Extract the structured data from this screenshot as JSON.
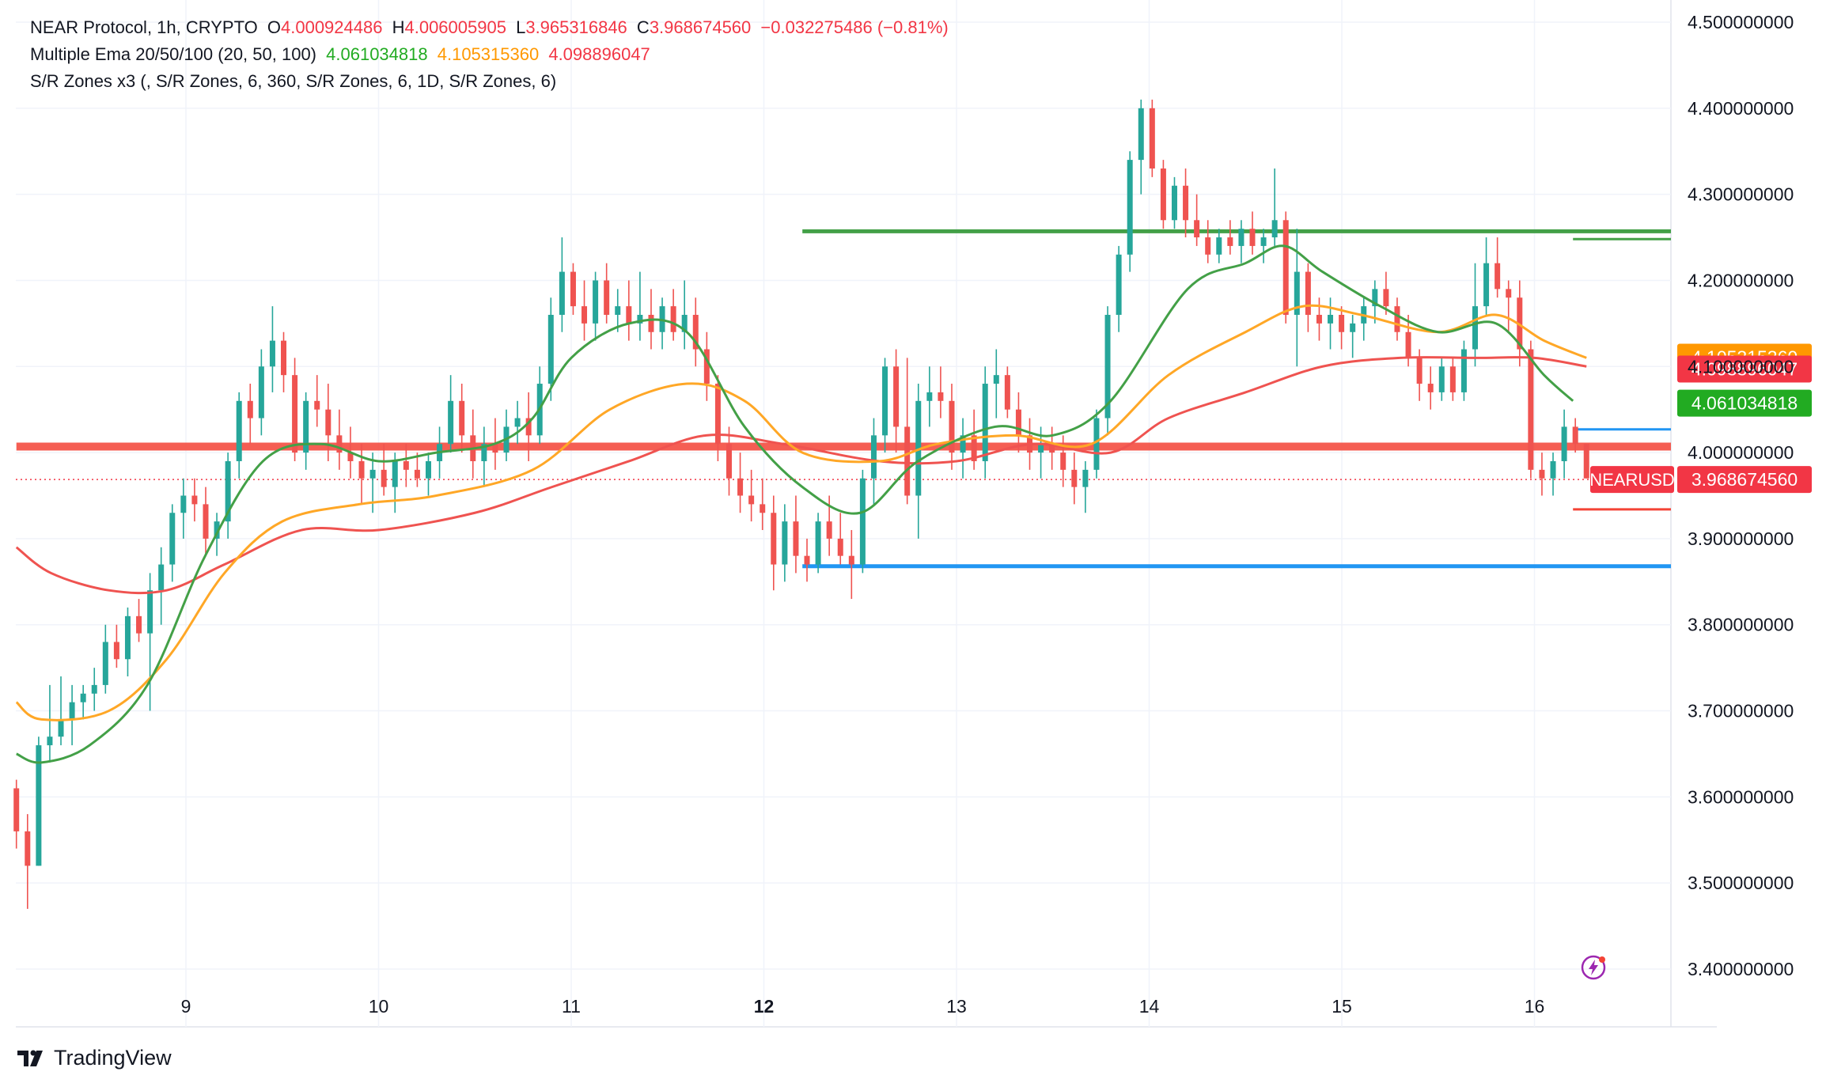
{
  "header": {
    "symbol_line": {
      "name": "NEAR Protocol, 1h, CRYPTO",
      "o_label": "O",
      "o_value": "4.000924486",
      "h_label": "H",
      "h_value": "4.006005905",
      "l_label": "L",
      "l_value": "3.965316846",
      "c_label": "C",
      "c_value": "3.968674560",
      "change": "−0.032275486 (−0.81%)"
    },
    "ema_line": {
      "name": "Multiple Ema 20/50/100 (20, 50, 100)",
      "v20": "4.061034818",
      "v50": "4.105315360",
      "v100": "4.098896047"
    },
    "sr_line": {
      "name": "S/R Zones x3 (, S/R Zones, 6, 360, S/R Zones, 6, 1D, S/R Zones, 6)"
    }
  },
  "branding": {
    "name": "TradingView"
  },
  "colors": {
    "up": "#26a69a",
    "down": "#ef5350",
    "ema20": "#43a047",
    "ema50": "#ffa726",
    "ema100": "#ef5350",
    "support": "#2196f3",
    "resistance": "#43a047",
    "pivot": "#f44336",
    "grid": "#f0f3fa",
    "axis_text": "#131722"
  },
  "chart_data": {
    "type": "candlestick",
    "title": "NEAR Protocol, 1h, CRYPTO",
    "y_axis": {
      "ylim": [
        3.33,
        4.52
      ],
      "ticks": [
        "4.500000000",
        "4.400000000",
        "4.300000000",
        "4.200000000",
        "4.100000000",
        "4.000000000",
        "3.900000000",
        "3.800000000",
        "3.700000000",
        "3.600000000",
        "3.500000000",
        "3.400000000"
      ],
      "position": "right"
    },
    "x_axis": {
      "ticks": [
        {
          "label": "9",
          "day": 9.0,
          "bold": false
        },
        {
          "label": "10",
          "day": 10.0,
          "bold": false
        },
        {
          "label": "11",
          "day": 11.0,
          "bold": false
        },
        {
          "label": "12",
          "day": 12.0,
          "bold": true
        },
        {
          "label": "13",
          "day": 13.0,
          "bold": false
        },
        {
          "label": "14",
          "day": 14.0,
          "bold": false
        },
        {
          "label": "15",
          "day": 15.0,
          "bold": false
        },
        {
          "label": "16",
          "day": 16.0,
          "bold": false
        }
      ],
      "xlim": [
        8.12,
        16.68
      ]
    },
    "candles_ohlc": [
      [
        3.61,
        3.62,
        3.54,
        3.56
      ],
      [
        3.56,
        3.58,
        3.47,
        3.52
      ],
      [
        3.52,
        3.67,
        3.52,
        3.66
      ],
      [
        3.66,
        3.73,
        3.64,
        3.67
      ],
      [
        3.67,
        3.74,
        3.66,
        3.69
      ],
      [
        3.69,
        3.73,
        3.66,
        3.71
      ],
      [
        3.71,
        3.73,
        3.69,
        3.72
      ],
      [
        3.72,
        3.75,
        3.7,
        3.73
      ],
      [
        3.73,
        3.8,
        3.72,
        3.78
      ],
      [
        3.78,
        3.8,
        3.75,
        3.76
      ],
      [
        3.76,
        3.82,
        3.74,
        3.81
      ],
      [
        3.81,
        3.83,
        3.78,
        3.79
      ],
      [
        3.79,
        3.86,
        3.7,
        3.84
      ],
      [
        3.84,
        3.89,
        3.8,
        3.87
      ],
      [
        3.87,
        3.94,
        3.85,
        3.93
      ],
      [
        3.93,
        3.97,
        3.9,
        3.95
      ],
      [
        3.95,
        3.97,
        3.92,
        3.94
      ],
      [
        3.94,
        3.96,
        3.88,
        3.9
      ],
      [
        3.9,
        3.93,
        3.88,
        3.92
      ],
      [
        3.92,
        4.0,
        3.9,
        3.99
      ],
      [
        3.99,
        4.07,
        3.97,
        4.06
      ],
      [
        4.06,
        4.08,
        4.01,
        4.04
      ],
      [
        4.04,
        4.12,
        4.02,
        4.1
      ],
      [
        4.1,
        4.17,
        4.07,
        4.13
      ],
      [
        4.13,
        4.14,
        4.07,
        4.09
      ],
      [
        4.09,
        4.11,
        3.99,
        4.0
      ],
      [
        4.0,
        4.07,
        3.98,
        4.06
      ],
      [
        4.06,
        4.09,
        4.03,
        4.05
      ],
      [
        4.05,
        4.08,
        3.99,
        4.02
      ],
      [
        4.02,
        4.05,
        3.98,
        4.0
      ],
      [
        4.0,
        4.03,
        3.97,
        3.99
      ],
      [
        3.99,
        4.01,
        3.94,
        3.97
      ],
      [
        3.97,
        4.0,
        3.93,
        3.98
      ],
      [
        3.98,
        4.01,
        3.95,
        3.96
      ],
      [
        3.96,
        4.0,
        3.93,
        3.99
      ],
      [
        3.99,
        4.01,
        3.96,
        3.98
      ],
      [
        3.98,
        4.0,
        3.96,
        3.97
      ],
      [
        3.97,
        4.0,
        3.95,
        3.99
      ],
      [
        3.99,
        4.03,
        3.97,
        4.01
      ],
      [
        4.01,
        4.09,
        4.0,
        4.06
      ],
      [
        4.06,
        4.08,
        4.0,
        4.02
      ],
      [
        4.02,
        4.05,
        3.97,
        3.99
      ],
      [
        3.99,
        4.03,
        3.96,
        4.01
      ],
      [
        4.01,
        4.04,
        3.98,
        4.0
      ],
      [
        4.0,
        4.05,
        3.99,
        4.03
      ],
      [
        4.03,
        4.06,
        4.01,
        4.04
      ],
      [
        4.04,
        4.07,
        3.99,
        4.02
      ],
      [
        4.02,
        4.1,
        4.01,
        4.08
      ],
      [
        4.08,
        4.18,
        4.06,
        4.16
      ],
      [
        4.16,
        4.25,
        4.14,
        4.21
      ],
      [
        4.21,
        4.22,
        4.16,
        4.17
      ],
      [
        4.17,
        4.2,
        4.13,
        4.15
      ],
      [
        4.15,
        4.21,
        4.13,
        4.2
      ],
      [
        4.2,
        4.22,
        4.15,
        4.16
      ],
      [
        4.16,
        4.19,
        4.14,
        4.17
      ],
      [
        4.17,
        4.2,
        4.13,
        4.15
      ],
      [
        4.15,
        4.21,
        4.13,
        4.16
      ],
      [
        4.16,
        4.19,
        4.12,
        4.14
      ],
      [
        4.14,
        4.18,
        4.12,
        4.17
      ],
      [
        4.17,
        4.19,
        4.13,
        4.14
      ],
      [
        4.14,
        4.2,
        4.12,
        4.16
      ],
      [
        4.16,
        4.18,
        4.1,
        4.12
      ],
      [
        4.12,
        4.14,
        4.06,
        4.08
      ],
      [
        4.08,
        4.09,
        3.99,
        4.01
      ],
      [
        4.01,
        4.03,
        3.95,
        3.97
      ],
      [
        3.97,
        4.0,
        3.93,
        3.95
      ],
      [
        3.95,
        3.98,
        3.92,
        3.94
      ],
      [
        3.94,
        3.97,
        3.91,
        3.93
      ],
      [
        3.93,
        3.95,
        3.84,
        3.87
      ],
      [
        3.87,
        3.94,
        3.85,
        3.92
      ],
      [
        3.92,
        3.95,
        3.86,
        3.88
      ],
      [
        3.88,
        3.9,
        3.85,
        3.87
      ],
      [
        3.87,
        3.93,
        3.86,
        3.92
      ],
      [
        3.92,
        3.95,
        3.88,
        3.9
      ],
      [
        3.9,
        3.93,
        3.87,
        3.88
      ],
      [
        3.88,
        3.91,
        3.83,
        3.87
      ],
      [
        3.87,
        3.98,
        3.86,
        3.97
      ],
      [
        3.97,
        4.04,
        3.94,
        4.02
      ],
      [
        4.02,
        4.11,
        4.0,
        4.1
      ],
      [
        4.1,
        4.12,
        4.0,
        4.03
      ],
      [
        4.03,
        4.11,
        3.94,
        3.95
      ],
      [
        3.95,
        4.08,
        3.9,
        4.06
      ],
      [
        4.06,
        4.1,
        4.03,
        4.07
      ],
      [
        4.07,
        4.1,
        4.04,
        4.06
      ],
      [
        4.06,
        4.08,
        3.98,
        4.0
      ],
      [
        4.0,
        4.04,
        3.97,
        4.02
      ],
      [
        4.02,
        4.05,
        3.98,
        3.99
      ],
      [
        3.99,
        4.1,
        3.97,
        4.08
      ],
      [
        4.08,
        4.12,
        4.04,
        4.09
      ],
      [
        4.09,
        4.1,
        4.04,
        4.05
      ],
      [
        4.05,
        4.07,
        4.0,
        4.02
      ],
      [
        4.02,
        4.04,
        3.98,
        4.0
      ],
      [
        4.0,
        4.03,
        3.97,
        4.01
      ],
      [
        4.01,
        4.03,
        3.98,
        4.0
      ],
      [
        4.0,
        4.02,
        3.96,
        3.98
      ],
      [
        3.98,
        4.0,
        3.94,
        3.96
      ],
      [
        3.96,
        3.99,
        3.93,
        3.98
      ],
      [
        3.98,
        4.05,
        3.97,
        4.04
      ],
      [
        4.04,
        4.17,
        4.02,
        4.16
      ],
      [
        4.16,
        4.24,
        4.14,
        4.23
      ],
      [
        4.23,
        4.35,
        4.21,
        4.34
      ],
      [
        4.34,
        4.41,
        4.3,
        4.4
      ],
      [
        4.4,
        4.41,
        4.32,
        4.33
      ],
      [
        4.33,
        4.34,
        4.26,
        4.27
      ],
      [
        4.27,
        4.32,
        4.26,
        4.31
      ],
      [
        4.31,
        4.33,
        4.25,
        4.27
      ],
      [
        4.27,
        4.3,
        4.24,
        4.25
      ],
      [
        4.25,
        4.27,
        4.22,
        4.23
      ],
      [
        4.23,
        4.26,
        4.22,
        4.25
      ],
      [
        4.25,
        4.27,
        4.23,
        4.24
      ],
      [
        4.24,
        4.27,
        4.22,
        4.26
      ],
      [
        4.26,
        4.28,
        4.23,
        4.24
      ],
      [
        4.24,
        4.26,
        4.22,
        4.25
      ],
      [
        4.25,
        4.33,
        4.24,
        4.27
      ],
      [
        4.27,
        4.28,
        4.15,
        4.16
      ],
      [
        4.16,
        4.26,
        4.1,
        4.21
      ],
      [
        4.21,
        4.22,
        4.14,
        4.16
      ],
      [
        4.16,
        4.18,
        4.13,
        4.15
      ],
      [
        4.15,
        4.18,
        4.12,
        4.16
      ],
      [
        4.16,
        4.17,
        4.12,
        4.14
      ],
      [
        4.14,
        4.16,
        4.11,
        4.15
      ],
      [
        4.15,
        4.18,
        4.13,
        4.17
      ],
      [
        4.17,
        4.2,
        4.15,
        4.19
      ],
      [
        4.19,
        4.21,
        4.16,
        4.17
      ],
      [
        4.17,
        4.18,
        4.13,
        4.14
      ],
      [
        4.14,
        4.16,
        4.1,
        4.11
      ],
      [
        4.11,
        4.12,
        4.06,
        4.08
      ],
      [
        4.08,
        4.1,
        4.05,
        4.07
      ],
      [
        4.07,
        4.11,
        4.06,
        4.1
      ],
      [
        4.1,
        4.11,
        4.06,
        4.07
      ],
      [
        4.07,
        4.13,
        4.06,
        4.12
      ],
      [
        4.12,
        4.22,
        4.1,
        4.17
      ],
      [
        4.17,
        4.25,
        4.16,
        4.22
      ],
      [
        4.22,
        4.25,
        4.18,
        4.19
      ],
      [
        4.19,
        4.2,
        4.14,
        4.18
      ],
      [
        4.18,
        4.2,
        4.1,
        4.12
      ],
      [
        4.12,
        4.13,
        3.97,
        3.98
      ],
      [
        3.98,
        4.0,
        3.95,
        3.97
      ],
      [
        3.97,
        4.0,
        3.95,
        3.99
      ],
      [
        3.99,
        4.05,
        3.97,
        4.03
      ],
      [
        4.03,
        4.04,
        4.0,
        4.01
      ],
      [
        4.01,
        4.01,
        3.97,
        3.97
      ]
    ],
    "ema_series": {
      "ema20_anchor_points": [
        [
          8.12,
          3.65
        ],
        [
          8.25,
          3.64
        ],
        [
          8.5,
          3.66
        ],
        [
          8.8,
          3.73
        ],
        [
          9.1,
          3.88
        ],
        [
          9.4,
          3.99
        ],
        [
          9.7,
          4.01
        ],
        [
          10.0,
          3.99
        ],
        [
          10.3,
          4.0
        ],
        [
          10.6,
          4.01
        ],
        [
          10.8,
          4.04
        ],
        [
          11.0,
          4.11
        ],
        [
          11.3,
          4.15
        ],
        [
          11.6,
          4.14
        ],
        [
          11.9,
          4.03
        ],
        [
          12.2,
          3.96
        ],
        [
          12.5,
          3.93
        ],
        [
          12.8,
          3.99
        ],
        [
          13.2,
          4.03
        ],
        [
          13.5,
          4.02
        ],
        [
          13.8,
          4.06
        ],
        [
          14.2,
          4.19
        ],
        [
          14.5,
          4.22
        ],
        [
          14.7,
          4.24
        ],
        [
          14.9,
          4.21
        ],
        [
          15.2,
          4.17
        ],
        [
          15.5,
          4.14
        ],
        [
          15.8,
          4.15
        ],
        [
          16.05,
          4.09
        ],
        [
          16.2,
          4.06
        ]
      ],
      "ema50_anchor_points": [
        [
          8.12,
          3.71
        ],
        [
          8.25,
          3.69
        ],
        [
          8.6,
          3.7
        ],
        [
          8.9,
          3.76
        ],
        [
          9.2,
          3.86
        ],
        [
          9.5,
          3.92
        ],
        [
          9.9,
          3.94
        ],
        [
          10.3,
          3.95
        ],
        [
          10.8,
          3.98
        ],
        [
          11.2,
          4.05
        ],
        [
          11.6,
          4.08
        ],
        [
          11.9,
          4.06
        ],
        [
          12.2,
          4.0
        ],
        [
          12.6,
          3.99
        ],
        [
          12.9,
          4.01
        ],
        [
          13.3,
          4.02
        ],
        [
          13.7,
          4.01
        ],
        [
          14.1,
          4.09
        ],
        [
          14.5,
          4.14
        ],
        [
          14.8,
          4.17
        ],
        [
          15.1,
          4.16
        ],
        [
          15.5,
          4.14
        ],
        [
          15.8,
          4.16
        ],
        [
          16.05,
          4.13
        ],
        [
          16.27,
          4.11
        ]
      ],
      "ema100_anchor_points": [
        [
          8.12,
          3.89
        ],
        [
          8.3,
          3.86
        ],
        [
          8.6,
          3.84
        ],
        [
          8.9,
          3.84
        ],
        [
          9.2,
          3.87
        ],
        [
          9.6,
          3.91
        ],
        [
          10.0,
          3.91
        ],
        [
          10.5,
          3.93
        ],
        [
          10.9,
          3.96
        ],
        [
          11.3,
          3.99
        ],
        [
          11.7,
          4.02
        ],
        [
          12.1,
          4.01
        ],
        [
          12.6,
          3.99
        ],
        [
          13.0,
          3.99
        ],
        [
          13.4,
          4.01
        ],
        [
          13.8,
          4.0
        ],
        [
          14.1,
          4.04
        ],
        [
          14.5,
          4.07
        ],
        [
          14.9,
          4.1
        ],
        [
          15.3,
          4.11
        ],
        [
          15.7,
          4.11
        ],
        [
          16.0,
          4.11
        ],
        [
          16.27,
          4.1
        ]
      ]
    },
    "sr_zones": [
      {
        "name": "resistance",
        "price": 4.257,
        "x_from": 12.2,
        "x_to": 16.68,
        "color": "#43a047"
      },
      {
        "name": "pivot",
        "price": 4.007,
        "x_from": 8.12,
        "x_to": 16.68,
        "color": "#f44336"
      },
      {
        "name": "support",
        "price": 3.868,
        "x_from": 12.2,
        "x_to": 16.68,
        "color": "#2196f3"
      },
      {
        "name": "short-resistance",
        "price": 4.248,
        "x_from": 16.2,
        "x_to": 16.68,
        "color": "#43a047"
      },
      {
        "name": "short-support-blue",
        "price": 4.027,
        "x_from": 16.2,
        "x_to": 16.68,
        "color": "#2196f3"
      },
      {
        "name": "short-support-red",
        "price": 3.934,
        "x_from": 16.2,
        "x_to": 16.68,
        "color": "#f44336"
      }
    ],
    "last_price_line": 3.96867456,
    "price_labels": [
      {
        "text": "4.105315360",
        "price": 4.10531536,
        "color": "#ff9800"
      },
      {
        "text": "4.098896047",
        "price": 4.098896047,
        "color": "#f23645"
      },
      {
        "text": "4.061034818",
        "price": 4.061034818,
        "color": "#22ab22"
      },
      {
        "text": "3.968674560",
        "price": 3.96867456,
        "color": "#f23645",
        "ticker": "NEARUSD"
      }
    ]
  }
}
